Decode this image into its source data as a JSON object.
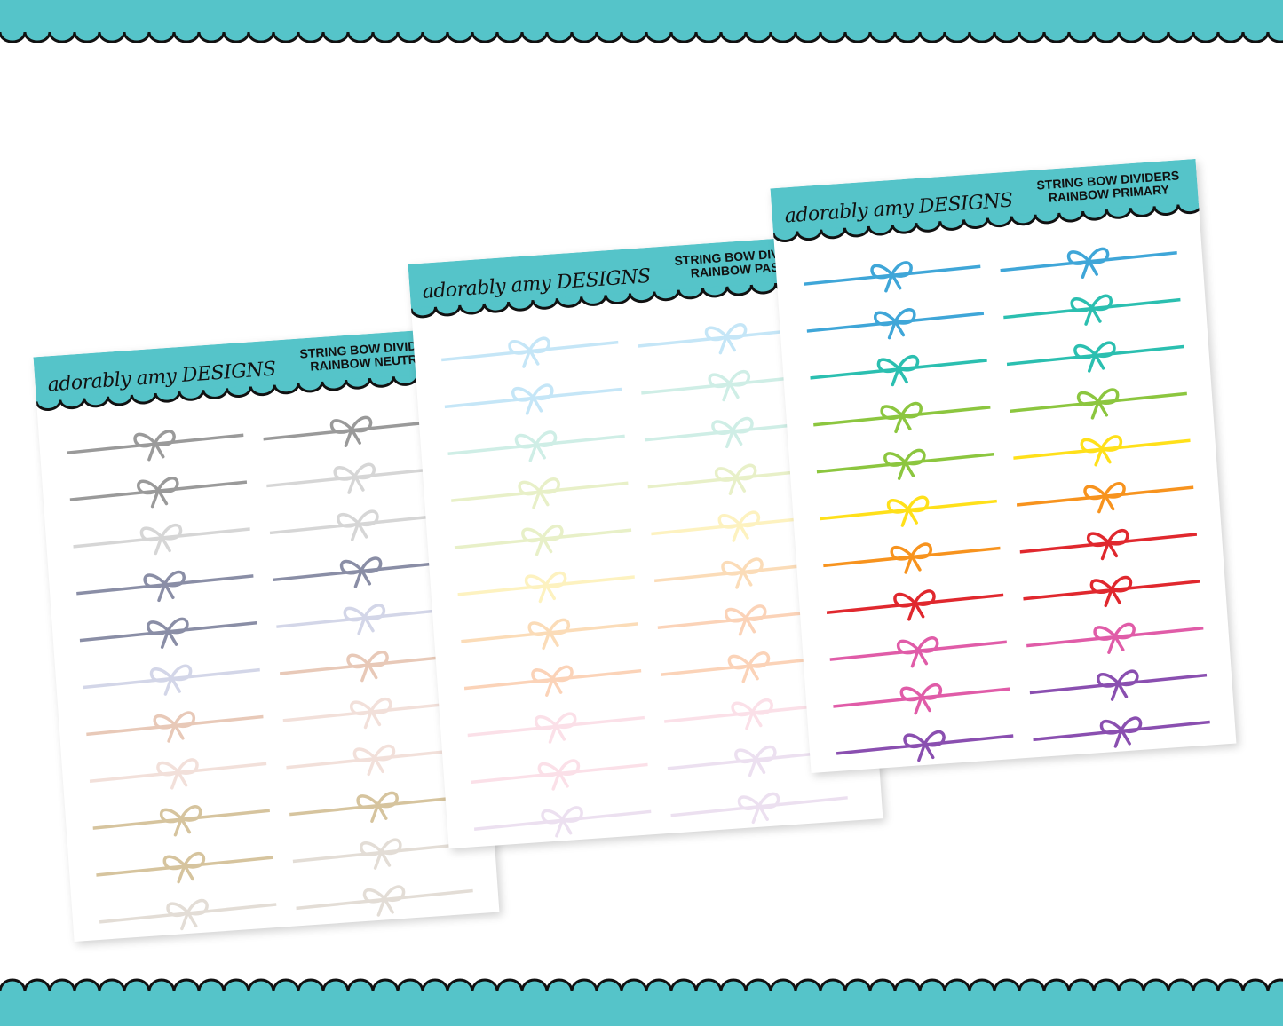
{
  "brand": "adorably amy DESIGNS",
  "sheets": [
    {
      "title1": "STRING BOW DIVIDERS",
      "title2": "RAINBOW NEUTRAL",
      "col1": [
        "#9a9a9a",
        "#9a9a9a",
        "#d6d6d6",
        "#8a8ea6",
        "#8a8ea6",
        "#d3d6e8",
        "#e8c9b8",
        "#f2e0da",
        "#d6c49e",
        "#d6c49e",
        "#e3ddd6"
      ],
      "col2": [
        "#9a9a9a",
        "#d6d6d6",
        "#d6d6d6",
        "#8a8ea6",
        "#d3d6e8",
        "#e8c9b8",
        "#f2e0da",
        "#f2e0da",
        "#d6c49e",
        "#e3ddd6",
        "#e3ddd6"
      ]
    },
    {
      "title1": "STRING BOW DIVIDERS",
      "title2": "RAINBOW PASTEL",
      "col1": [
        "#c5e6f7",
        "#c5e6f7",
        "#cfeee6",
        "#e8f0c8",
        "#e8f0c8",
        "#fdf2c0",
        "#fbdcb8",
        "#fbd3b8",
        "#fbe0e8",
        "#fbe0e8",
        "#ece0f0"
      ],
      "col2": [
        "#c5e6f7",
        "#cfeee6",
        "#cfeee6",
        "#e8f0c8",
        "#fdf2c0",
        "#fbdcb8",
        "#fbd3b8",
        "#fbd3b8",
        "#fbe0e8",
        "#ece0f0",
        "#ece0f0"
      ]
    },
    {
      "title1": "STRING BOW DIVIDERS",
      "title2": "RAINBOW PRIMARY",
      "col1": [
        "#3fa6d8",
        "#3fa6d8",
        "#2bbfb0",
        "#8cc63f",
        "#8cc63f",
        "#ffe01a",
        "#f7931e",
        "#e0282e",
        "#e05ca8",
        "#e05ca8",
        "#8a4fb0"
      ],
      "col2": [
        "#3fa6d8",
        "#2bbfb0",
        "#2bbfb0",
        "#8cc63f",
        "#ffe01a",
        "#f7931e",
        "#e0282e",
        "#e0282e",
        "#e05ca8",
        "#8a4fb0",
        "#8a4fb0"
      ]
    }
  ],
  "colors": {
    "teal": "#55c4c9",
    "outline": "#111111"
  }
}
